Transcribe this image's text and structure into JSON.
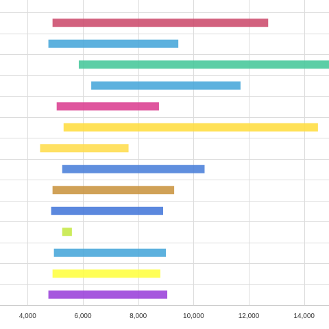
{
  "chart_data": {
    "type": "bar",
    "orientation": "horizontal-range",
    "title": "",
    "xlabel": "",
    "ylabel": "",
    "xlim": [
      3000,
      14900
    ],
    "grid": true,
    "x_ticks": [
      {
        "value": 4000,
        "label": "4,000"
      },
      {
        "value": 6000,
        "label": "6,000"
      },
      {
        "value": 8000,
        "label": "8,000"
      },
      {
        "value": 10000,
        "label": "10,000"
      },
      {
        "value": 12000,
        "label": "12,000"
      },
      {
        "value": 14000,
        "label": "14,000"
      }
    ],
    "bars": [
      {
        "start": 4900,
        "end": 12700,
        "color": "#cc4b6c"
      },
      {
        "start": 4750,
        "end": 9450,
        "color": "#47a6d9"
      },
      {
        "start": 5850,
        "end": 14900,
        "color": "#45c79a"
      },
      {
        "start": 6300,
        "end": 11700,
        "color": "#47a6d9"
      },
      {
        "start": 5050,
        "end": 8750,
        "color": "#db3f91"
      },
      {
        "start": 5300,
        "end": 14500,
        "color": "#ffdd40"
      },
      {
        "start": 4450,
        "end": 7650,
        "color": "#ffdd4d"
      },
      {
        "start": 5250,
        "end": 10400,
        "color": "#4a7fd9"
      },
      {
        "start": 4900,
        "end": 9300,
        "color": "#c99440"
      },
      {
        "start": 4850,
        "end": 8900,
        "color": "#4477d9"
      },
      {
        "start": 5250,
        "end": 5600,
        "color": "#c5e845"
      },
      {
        "start": 4950,
        "end": 9000,
        "color": "#47a6d9"
      },
      {
        "start": 4900,
        "end": 8800,
        "color": "#ffff40"
      },
      {
        "start": 4750,
        "end": 9050,
        "color": "#9a40d9"
      }
    ]
  }
}
